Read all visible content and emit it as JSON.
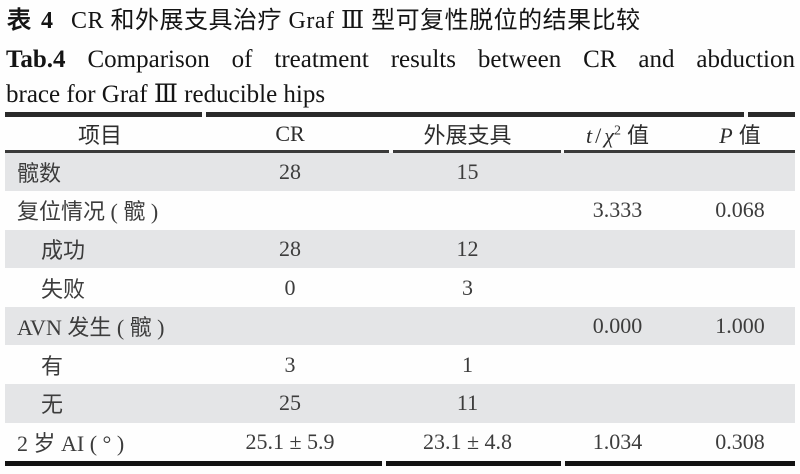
{
  "title": {
    "zh_label": "表 4",
    "zh_text": "CR 和外展支具治疗 Graf Ⅲ 型可复性脱位的结果比较",
    "en_label": "Tab.4",
    "en_line1": "Comparison of treatment results between CR and abduction",
    "en_line2": "brace for Graf Ⅲ reducible hips"
  },
  "table": {
    "headers": {
      "item": "项目",
      "cr": "CR",
      "brace": "外展支具",
      "stat_t": "t",
      "stat_slash": "/",
      "stat_chi": "χ",
      "stat_sup": "2",
      "stat_zhi": "值",
      "p_symbol": "P",
      "p_zhi": "值"
    },
    "rows": [
      {
        "label": "髋数",
        "cr": "28",
        "brace": "15",
        "stat": "",
        "p": ""
      },
      {
        "label": "复位情况 ( 髋 )",
        "cr": "",
        "brace": "",
        "stat": "3.333",
        "p": "0.068"
      },
      {
        "label": "成功",
        "cr": "28",
        "brace": "12",
        "stat": "",
        "p": ""
      },
      {
        "label": "失败",
        "cr": "0",
        "brace": "3",
        "stat": "",
        "p": ""
      },
      {
        "label": "AVN 发生 ( 髋 )",
        "cr": "",
        "brace": "",
        "stat": "0.000",
        "p": "1.000"
      },
      {
        "label": "有",
        "cr": "3",
        "brace": "1",
        "stat": "",
        "p": ""
      },
      {
        "label": "无",
        "cr": "25",
        "brace": "11",
        "stat": "",
        "p": ""
      },
      {
        "label": "2 岁 AI ( ° )",
        "cr": "25.1 ± 5.9",
        "brace": "23.1 ± 4.8",
        "stat": "1.034",
        "p": "0.308"
      }
    ]
  },
  "colors": {
    "page_bg": "#fefefe",
    "row_shade": "#e4e5e7",
    "table_text": "#3c3c3c",
    "rule_dark": "#1c1c1c"
  }
}
